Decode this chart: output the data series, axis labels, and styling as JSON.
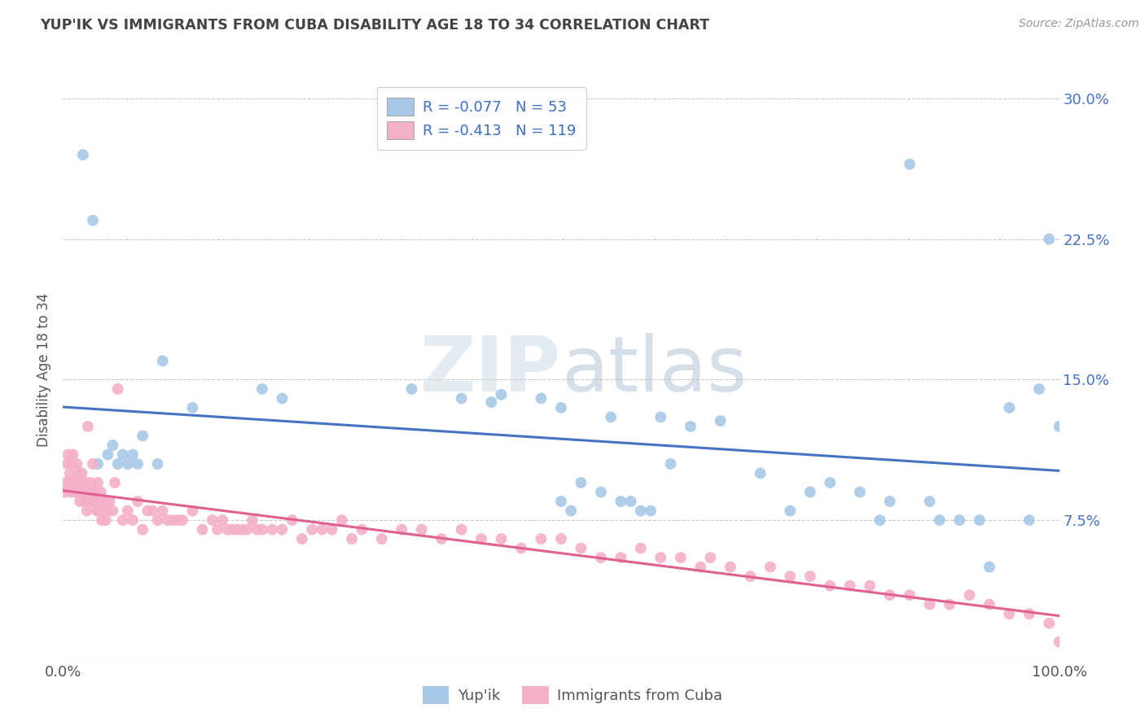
{
  "title": "YUP'IK VS IMMIGRANTS FROM CUBA DISABILITY AGE 18 TO 34 CORRELATION CHART",
  "source": "Source: ZipAtlas.com",
  "ylabel_label": "Disability Age 18 to 34",
  "series": [
    {
      "name": "Yup'ik",
      "color": "#a8c8e8",
      "line_color": "#4472C4",
      "R": -0.077,
      "N": 53,
      "x": [
        2.0,
        3.0,
        3.5,
        4.5,
        5.0,
        5.5,
        6.0,
        6.5,
        7.0,
        7.5,
        8.0,
        9.5,
        10.0,
        13.0,
        20.0,
        22.0,
        35.0,
        40.0,
        43.0,
        44.0,
        48.0,
        50.0,
        55.0,
        60.0,
        61.0,
        63.0,
        66.0,
        70.0,
        73.0,
        75.0,
        77.0,
        80.0,
        82.0,
        83.0,
        85.0,
        87.0,
        88.0,
        90.0,
        92.0,
        93.0,
        95.0,
        97.0,
        98.0,
        99.0,
        100.0,
        50.0,
        51.0,
        52.0,
        54.0,
        56.0,
        57.0,
        58.0,
        59.0
      ],
      "y": [
        27.0,
        23.5,
        10.5,
        11.0,
        11.5,
        10.5,
        11.0,
        10.5,
        11.0,
        10.5,
        12.0,
        10.5,
        16.0,
        13.5,
        14.5,
        14.0,
        14.5,
        14.0,
        13.8,
        14.2,
        14.0,
        13.5,
        13.0,
        13.0,
        10.5,
        12.5,
        12.8,
        10.0,
        8.0,
        9.0,
        9.5,
        9.0,
        7.5,
        8.5,
        26.5,
        8.5,
        7.5,
        7.5,
        7.5,
        5.0,
        13.5,
        7.5,
        14.5,
        22.5,
        12.5,
        8.5,
        8.0,
        9.5,
        9.0,
        8.5,
        8.5,
        8.0,
        8.0
      ]
    },
    {
      "name": "Immigrants from Cuba",
      "color": "#f4b0c8",
      "line_color": "#e06090",
      "R": -0.413,
      "N": 119,
      "x": [
        0.2,
        0.3,
        0.4,
        0.5,
        0.6,
        0.7,
        0.8,
        0.9,
        1.0,
        1.1,
        1.2,
        1.3,
        1.4,
        1.5,
        1.6,
        1.7,
        1.8,
        1.9,
        2.0,
        2.1,
        2.2,
        2.3,
        2.4,
        2.5,
        2.6,
        2.7,
        2.8,
        2.9,
        3.0,
        3.1,
        3.2,
        3.3,
        3.4,
        3.5,
        3.6,
        3.7,
        3.8,
        3.9,
        4.0,
        4.1,
        4.2,
        4.3,
        4.5,
        4.7,
        5.0,
        5.2,
        5.5,
        6.0,
        6.5,
        7.0,
        7.5,
        8.0,
        8.5,
        9.0,
        9.5,
        10.0,
        11.0,
        12.0,
        13.0,
        14.0,
        15.0,
        16.0,
        17.0,
        18.0,
        19.0,
        20.0,
        21.0,
        22.0,
        23.0,
        24.0,
        25.0,
        26.0,
        27.0,
        28.0,
        29.0,
        30.0,
        32.0,
        34.0,
        36.0,
        38.0,
        40.0,
        42.0,
        44.0,
        46.0,
        48.0,
        50.0,
        52.0,
        54.0,
        56.0,
        58.0,
        60.0,
        62.0,
        64.0,
        65.0,
        67.0,
        69.0,
        71.0,
        73.0,
        75.0,
        77.0,
        79.0,
        81.0,
        83.0,
        85.0,
        87.0,
        89.0,
        91.0,
        93.0,
        95.0,
        97.0,
        99.0,
        100.0,
        15.5,
        16.5,
        17.5,
        18.5,
        19.5,
        10.5,
        11.5
      ],
      "y": [
        9.0,
        9.5,
        10.5,
        11.0,
        9.5,
        10.0,
        9.0,
        10.5,
        11.0,
        9.5,
        9.0,
        9.5,
        10.5,
        9.0,
        10.0,
        8.5,
        9.0,
        10.0,
        9.5,
        9.0,
        8.5,
        9.5,
        8.0,
        12.5,
        8.5,
        9.0,
        9.5,
        8.5,
        10.5,
        9.0,
        8.5,
        9.0,
        8.0,
        9.5,
        8.0,
        8.5,
        9.0,
        7.5,
        8.5,
        8.0,
        8.5,
        7.5,
        8.0,
        8.5,
        8.0,
        9.5,
        14.5,
        7.5,
        8.0,
        7.5,
        8.5,
        7.0,
        8.0,
        8.0,
        7.5,
        8.0,
        7.5,
        7.5,
        8.0,
        7.0,
        7.5,
        7.5,
        7.0,
        7.0,
        7.5,
        7.0,
        7.0,
        7.0,
        7.5,
        6.5,
        7.0,
        7.0,
        7.0,
        7.5,
        6.5,
        7.0,
        6.5,
        7.0,
        7.0,
        6.5,
        7.0,
        6.5,
        6.5,
        6.0,
        6.5,
        6.5,
        6.0,
        5.5,
        5.5,
        6.0,
        5.5,
        5.5,
        5.0,
        5.5,
        5.0,
        4.5,
        5.0,
        4.5,
        4.5,
        4.0,
        4.0,
        4.0,
        3.5,
        3.5,
        3.0,
        3.0,
        3.5,
        3.0,
        2.5,
        2.5,
        2.0,
        1.0,
        7.0,
        7.0,
        7.0,
        7.0,
        7.0,
        7.5,
        7.5
      ]
    }
  ],
  "xlim": [
    0,
    100
  ],
  "ylim": [
    0,
    31
  ],
  "ytick_values": [
    0,
    7.5,
    15.0,
    22.5,
    30.0
  ],
  "background_color": "#ffffff",
  "grid_color": "#bbbbbb"
}
